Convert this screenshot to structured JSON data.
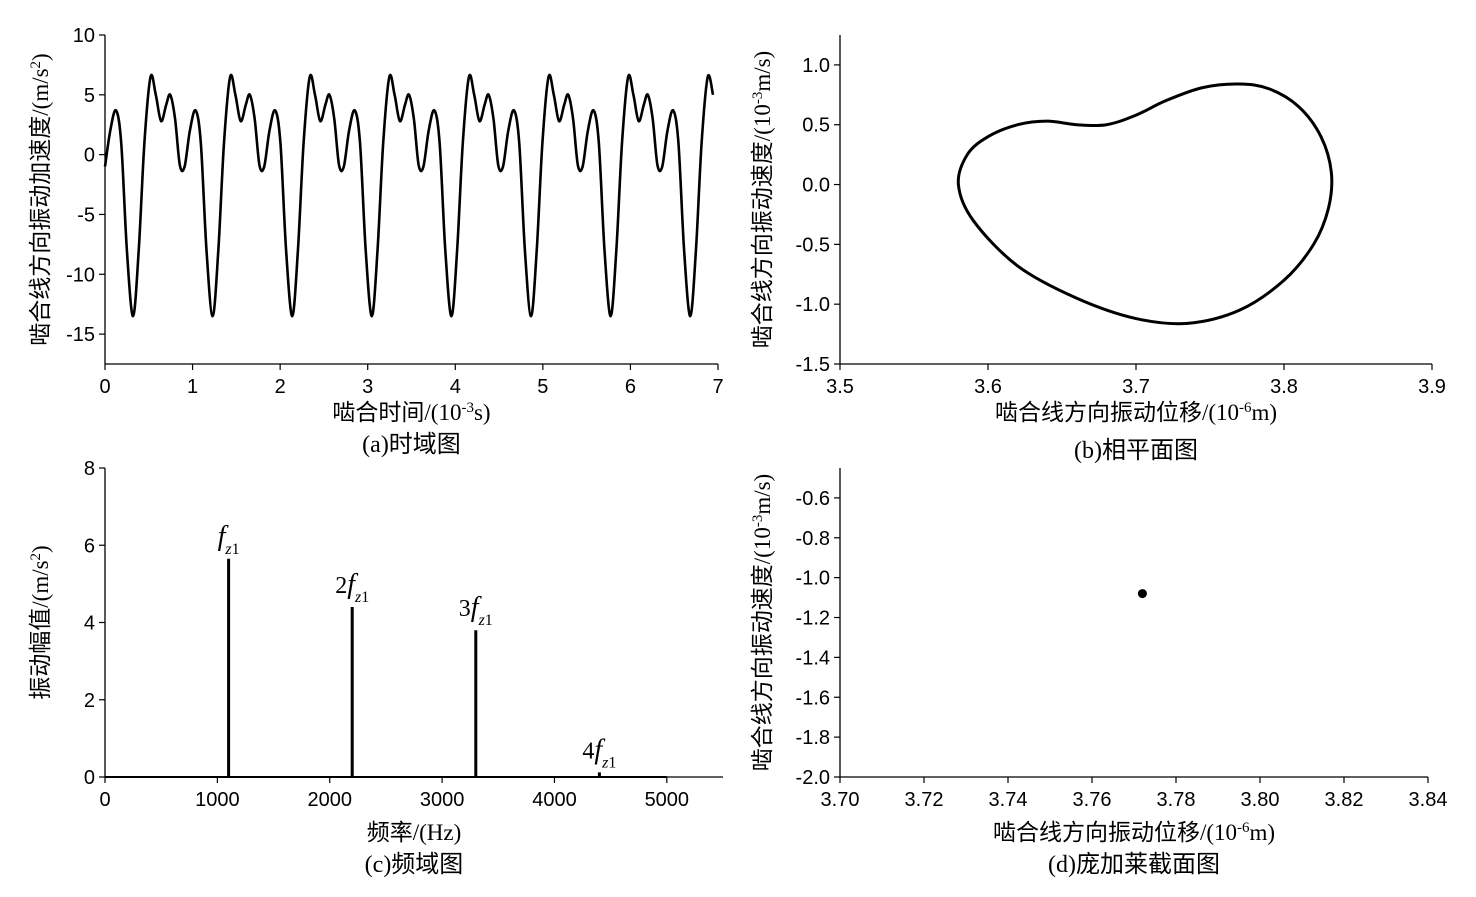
{
  "chart_data": [
    {
      "id": "a",
      "type": "line",
      "caption": "(a)时域图",
      "xlabel": "啮合时间/(10",
      "xlabel_sup": "-3",
      "xlabel_post": "s)",
      "ylabel": "啮合线方向振动加速度/(m/s",
      "ylabel_sup": "2",
      "ylabel_post": ")",
      "xlim": [
        0,
        7
      ],
      "ylim": [
        -17.5,
        10
      ],
      "xticks": [
        0,
        1,
        2,
        3,
        4,
        5,
        6,
        7
      ],
      "yticks": [
        -15,
        -10,
        -5,
        0,
        5,
        10
      ],
      "xtick_labels": [
        "0",
        "1",
        "2",
        "3",
        "4",
        "5",
        "6",
        "7"
      ],
      "ytick_labels": [
        "-15",
        "-10",
        "-5",
        "0",
        "5",
        "10"
      ],
      "period": 0.909,
      "cycle_template": [
        {
          "t": 0.0,
          "y": -1.0
        },
        {
          "t": 0.06,
          "y": 2.0
        },
        {
          "t": 0.125,
          "y": 3.7
        },
        {
          "t": 0.185,
          "y": 1.0
        },
        {
          "t": 0.25,
          "y": -8.0
        },
        {
          "t": 0.32,
          "y": -13.5
        },
        {
          "t": 0.385,
          "y": -8.0
        },
        {
          "t": 0.45,
          "y": 1.0
        },
        {
          "t": 0.52,
          "y": 6.5
        },
        {
          "t": 0.58,
          "y": 5.0
        },
        {
          "t": 0.64,
          "y": 2.8
        },
        {
          "t": 0.7,
          "y": 4.2
        },
        {
          "t": 0.745,
          "y": 5.0
        },
        {
          "t": 0.8,
          "y": 3.0
        },
        {
          "t": 0.855,
          "y": -0.9
        },
        {
          "t": 0.909,
          "y": -1.0
        }
      ]
    },
    {
      "id": "b",
      "type": "line",
      "caption": "(b)相平面图",
      "xlabel": "啮合线方向振动位移/(10",
      "xlabel_sup": "-6",
      "xlabel_post": "m)",
      "ylabel": "啮合线方向振动速度/(10",
      "ylabel_sup": "-3",
      "ylabel_post": "m/s)",
      "xlim": [
        3.5,
        3.9
      ],
      "ylim": [
        -1.5,
        1.25
      ],
      "xticks": [
        3.5,
        3.6,
        3.7,
        3.8,
        3.9
      ],
      "yticks": [
        -1.5,
        -1.0,
        -0.5,
        0.0,
        0.5,
        1.0
      ],
      "xtick_labels": [
        "3.5",
        "3.6",
        "3.7",
        "3.8",
        "3.9"
      ],
      "ytick_labels": [
        "-1.5",
        "-1.0",
        "-0.5",
        "0.0",
        "0.5",
        "1.0"
      ],
      "points": [
        [
          3.58,
          0.0
        ],
        [
          3.586,
          0.25
        ],
        [
          3.6,
          0.4
        ],
        [
          3.62,
          0.5
        ],
        [
          3.64,
          0.53
        ],
        [
          3.66,
          0.5
        ],
        [
          3.68,
          0.5
        ],
        [
          3.7,
          0.58
        ],
        [
          3.72,
          0.7
        ],
        [
          3.745,
          0.81
        ],
        [
          3.77,
          0.84
        ],
        [
          3.79,
          0.8
        ],
        [
          3.81,
          0.65
        ],
        [
          3.825,
          0.4
        ],
        [
          3.832,
          0.1
        ],
        [
          3.83,
          -0.2
        ],
        [
          3.82,
          -0.5
        ],
        [
          3.8,
          -0.8
        ],
        [
          3.77,
          -1.05
        ],
        [
          3.735,
          -1.16
        ],
        [
          3.7,
          -1.12
        ],
        [
          3.66,
          -0.95
        ],
        [
          3.62,
          -0.68
        ],
        [
          3.59,
          -0.3
        ],
        [
          3.58,
          0.0
        ]
      ]
    },
    {
      "id": "c",
      "type": "bar",
      "caption": "(c)频域图",
      "xlabel": "频率/(Hz)",
      "ylabel": "振动幅值/(m/s",
      "ylabel_sup": "2",
      "ylabel_post": ")",
      "xlim": [
        0,
        5500
      ],
      "ylim": [
        0,
        8
      ],
      "xticks": [
        0,
        1000,
        2000,
        3000,
        4000,
        5000
      ],
      "yticks": [
        0,
        2,
        4,
        6,
        8
      ],
      "xtick_labels": [
        "0",
        "1000",
        "2000",
        "3000",
        "4000",
        "5000"
      ],
      "ytick_labels": [
        "0",
        "2",
        "4",
        "6",
        "8"
      ],
      "baseline_end": 5000,
      "peaks": [
        {
          "x": 1100,
          "y": 5.65,
          "coef": "",
          "label": "f",
          "sub": "z1"
        },
        {
          "x": 2200,
          "y": 4.4,
          "coef": "2",
          "label": "f",
          "sub": "z1"
        },
        {
          "x": 3300,
          "y": 3.8,
          "coef": "3",
          "label": "f",
          "sub": "z1"
        },
        {
          "x": 4400,
          "y": 0.12,
          "coef": "4",
          "label": "f",
          "sub": "z1"
        }
      ]
    },
    {
      "id": "d",
      "type": "scatter",
      "caption": "(d)庞加莱截面图",
      "xlabel": "啮合线方向振动位移/(10",
      "xlabel_sup": "-6",
      "xlabel_post": "m)",
      "ylabel": "啮合线方向振动速度/(10",
      "ylabel_sup": "-3",
      "ylabel_post": "m/s)",
      "xlim": [
        3.7,
        3.84
      ],
      "ylim": [
        -2.0,
        -0.45
      ],
      "xticks": [
        3.7,
        3.72,
        3.74,
        3.76,
        3.78,
        3.8,
        3.82,
        3.84
      ],
      "yticks": [
        -2.0,
        -1.8,
        -1.6,
        -1.4,
        -1.2,
        -1.0,
        -0.8,
        -0.6
      ],
      "xtick_labels": [
        "3.70",
        "3.72",
        "3.74",
        "3.76",
        "3.78",
        "3.80",
        "3.82",
        "3.84"
      ],
      "ytick_labels": [
        "-2.0",
        "-1.8",
        "-1.6",
        "-1.4",
        "-1.2",
        "-1.0",
        "-0.8",
        "-0.6"
      ],
      "points": [
        [
          3.772,
          -1.08
        ]
      ]
    }
  ]
}
